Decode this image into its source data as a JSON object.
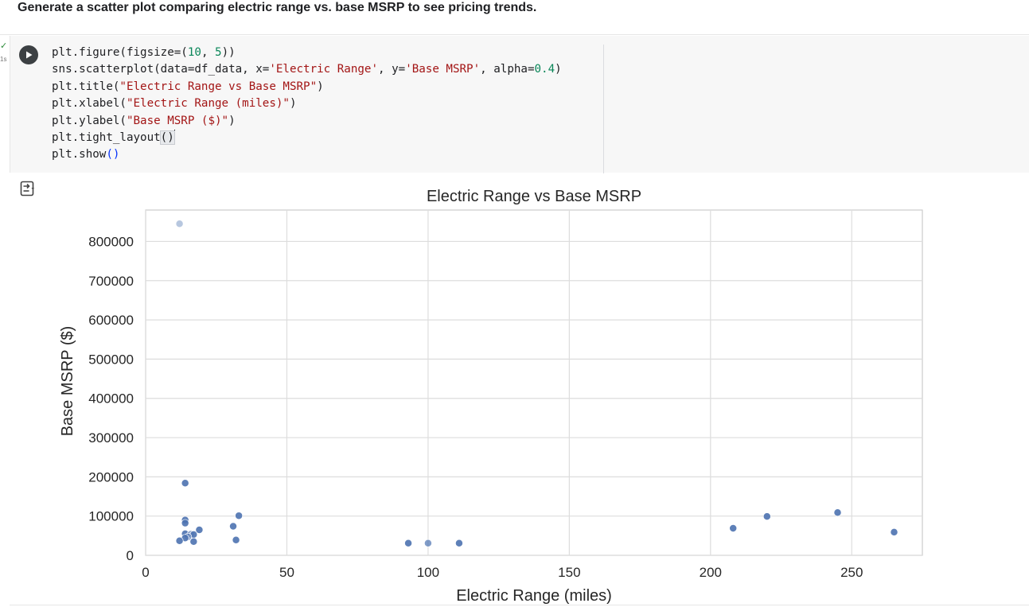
{
  "prompt_text": "Generate a scatter plot comparing electric range vs. base MSRP to see pricing trends.",
  "gutter": {
    "status_check": "✓",
    "exec_time": "1s"
  },
  "run_button": {
    "icon": "play-icon"
  },
  "code_lines": [
    [
      "plt.figure(figsize=(",
      {
        "c": "n",
        "t": "10"
      },
      ", ",
      {
        "c": "n",
        "t": "5"
      },
      "))"
    ],
    [
      "sns.scatterplot(data=df_data, x=",
      {
        "c": "s",
        "t": "'Electric Range'"
      },
      ", y=",
      {
        "c": "s",
        "t": "'Base MSRP'"
      },
      ", alpha=",
      {
        "c": "n",
        "t": "0.4"
      },
      ")"
    ],
    [
      "plt.title(",
      {
        "c": "s",
        "t": "\"Electric Range vs Base MSRP\""
      },
      ")"
    ],
    [
      "plt.xlabel(",
      {
        "c": "s",
        "t": "\"Electric Range (miles)\""
      },
      ")"
    ],
    [
      "plt.ylabel(",
      {
        "c": "s",
        "t": "\"Base MSRP ($)\""
      },
      ")"
    ],
    [
      "plt.tight_layout",
      {
        "c": "hl",
        "t": "()"
      },
      {
        "c": "cursor",
        "t": ""
      }
    ],
    [
      "plt.show",
      {
        "c": "p",
        "t": "()"
      }
    ]
  ],
  "output_toggle": {
    "icon": "output-collapse-icon"
  },
  "chart_data": {
    "type": "scatter",
    "title": "Electric Range vs Base MSRP",
    "xlabel": "Electric Range (miles)",
    "ylabel": "Base MSRP ($)",
    "xlim": [
      0,
      275
    ],
    "ylim": [
      0,
      880000
    ],
    "xticks": [
      0,
      50,
      100,
      150,
      200,
      250
    ],
    "yticks": [
      0,
      100000,
      200000,
      300000,
      400000,
      500000,
      600000,
      700000,
      800000
    ],
    "grid": true,
    "point_color": "#4c72b0",
    "points": [
      {
        "x": 12,
        "y": 845000,
        "a": 0.4
      },
      {
        "x": 14,
        "y": 184000,
        "a": 0.9
      },
      {
        "x": 14,
        "y": 90000,
        "a": 0.9
      },
      {
        "x": 14,
        "y": 82000,
        "a": 0.9
      },
      {
        "x": 19,
        "y": 65000,
        "a": 0.9
      },
      {
        "x": 14,
        "y": 55000,
        "a": 0.9
      },
      {
        "x": 16,
        "y": 54000,
        "a": 0.6
      },
      {
        "x": 17,
        "y": 53000,
        "a": 0.9
      },
      {
        "x": 15,
        "y": 47000,
        "a": 0.6
      },
      {
        "x": 14,
        "y": 44000,
        "a": 0.9
      },
      {
        "x": 12,
        "y": 37000,
        "a": 0.9
      },
      {
        "x": 17,
        "y": 35000,
        "a": 0.9
      },
      {
        "x": 31,
        "y": 74000,
        "a": 0.9
      },
      {
        "x": 33,
        "y": 101000,
        "a": 0.9
      },
      {
        "x": 32,
        "y": 39000,
        "a": 0.9
      },
      {
        "x": 93,
        "y": 31000,
        "a": 0.9
      },
      {
        "x": 100,
        "y": 31000,
        "a": 0.7
      },
      {
        "x": 111,
        "y": 31000,
        "a": 0.9
      },
      {
        "x": 208,
        "y": 69000,
        "a": 0.9
      },
      {
        "x": 220,
        "y": 99000,
        "a": 0.9
      },
      {
        "x": 245,
        "y": 109000,
        "a": 0.9
      },
      {
        "x": 265,
        "y": 59000,
        "a": 0.9
      }
    ]
  }
}
